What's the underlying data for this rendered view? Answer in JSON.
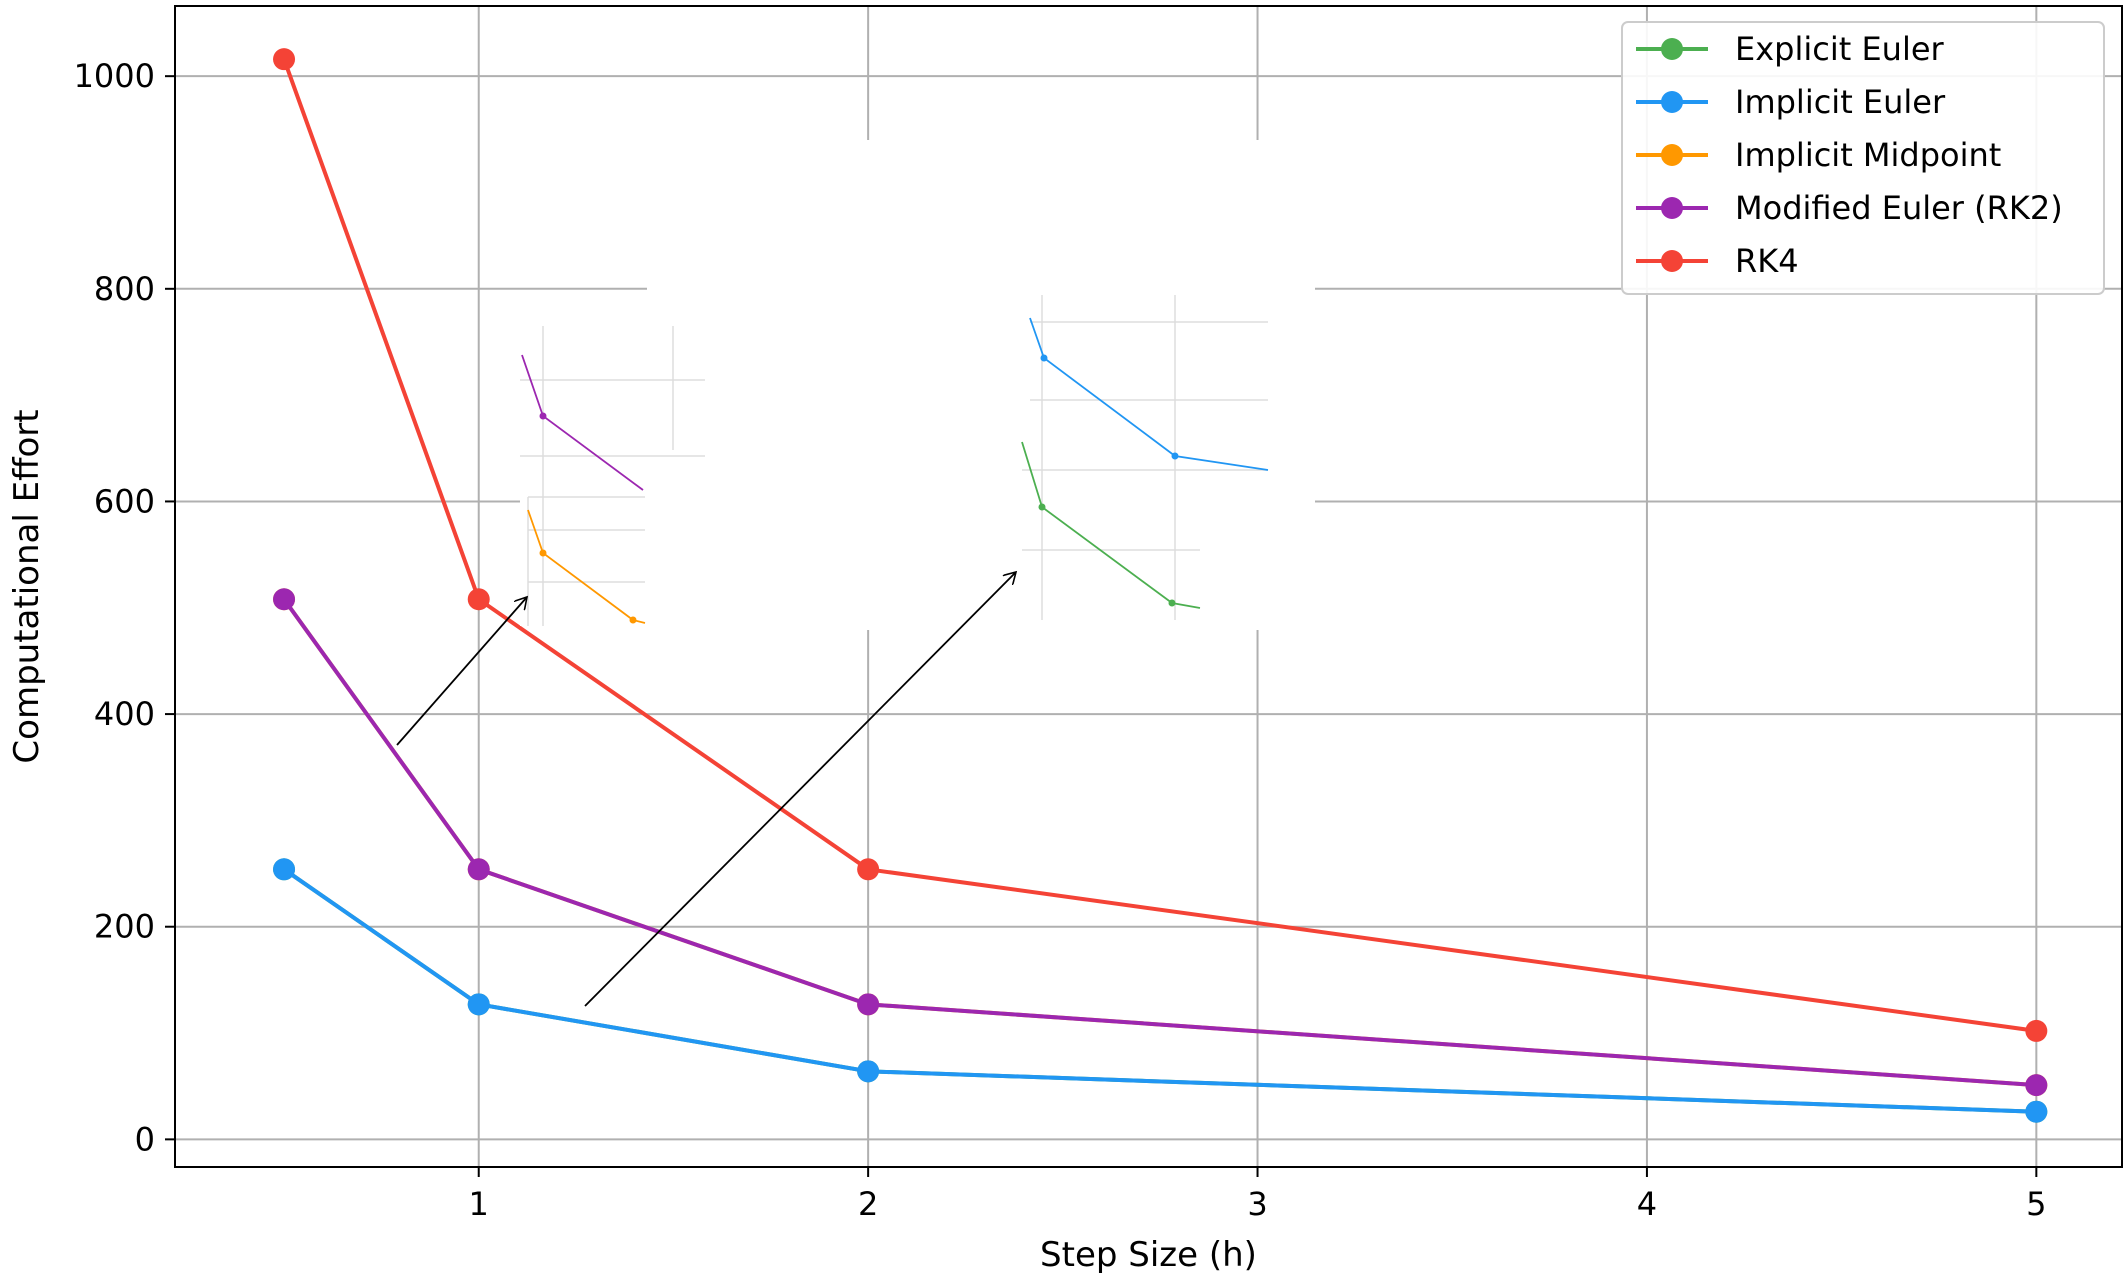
{
  "chart_data": {
    "type": "line",
    "title": "",
    "xlabel": "Step Size (h)",
    "ylabel": "Computational Effort",
    "xlim": [
      0.22,
      5.22
    ],
    "ylim": [
      -26,
      1066
    ],
    "x_ticks": [
      1,
      2,
      3,
      4,
      5
    ],
    "x_tick_labels": [
      "1",
      "2",
      "3",
      "4",
      "5"
    ],
    "y_ticks": [
      0,
      200,
      400,
      600,
      800,
      1000
    ],
    "y_tick_labels": [
      "0",
      "200",
      "400",
      "600",
      "800",
      "1000"
    ],
    "grid": true,
    "legend_position": "top-right",
    "x": [
      0.5,
      1,
      2,
      5
    ],
    "series": [
      {
        "name": "Explicit Euler",
        "color": "#4caf50",
        "values": [
          254,
          127,
          64,
          26
        ]
      },
      {
        "name": "Implicit Euler",
        "color": "#2196f3",
        "values": [
          254,
          127,
          64,
          26
        ]
      },
      {
        "name": "Implicit Midpoint",
        "color": "#ff9800",
        "values": [
          508,
          254,
          127,
          51
        ]
      },
      {
        "name": "Modified Euler (RK2)",
        "color": "#9c27b0",
        "values": [
          508,
          254,
          127,
          51
        ]
      },
      {
        "name": "RK4",
        "color": "#f44336",
        "values": [
          1016,
          508,
          254,
          102
        ]
      }
    ],
    "inset_series_colors": [
      "#9c27b0",
      "#ff9800",
      "#2196f3",
      "#4caf50"
    ]
  }
}
